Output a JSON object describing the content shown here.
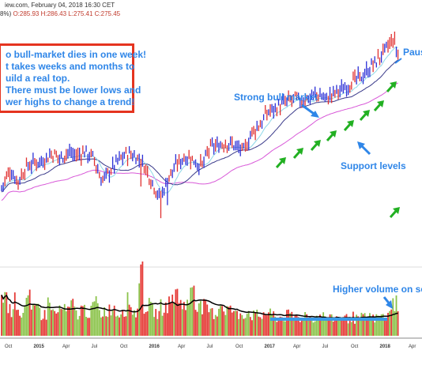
{
  "header": {
    "line1": "iew.com, February 04, 2018 16:30 CET",
    "line2_prefix": "8%) ",
    "ohlc": "O:285.93 H:286.43 L:275.41 C:275.45"
  },
  "callout": {
    "lines": [
      "o bull-market dies in one week!",
      "t takes weeks and months to",
      "uild a real top.",
      "There must be lower lows and",
      "wer highs to change a trend!"
    ]
  },
  "annotations": {
    "strong_bull": "Strong bull market",
    "support": "Support levels",
    "pause": "Paus",
    "volume": "Higher volume on sell"
  },
  "colors": {
    "up_bar": "#2b2fd6",
    "down_bar": "#e03030",
    "ma_fast": "#8ed8e8",
    "ma_mid": "#3a3a8a",
    "ma_slow": "#d858d8",
    "vol_up": "#8bc34a",
    "vol_down": "#e53935",
    "vol_ma": "#000000",
    "arrow_green": "#22b022",
    "arrow_blue": "#2f86e8",
    "highlight": "#3a9ae8"
  },
  "chart_data": {
    "type": "candlestick",
    "x_ticks": [
      "Oct",
      "2015",
      "Apr",
      "Jul",
      "Oct",
      "2016",
      "Apr",
      "Jul",
      "Oct",
      "2017",
      "Apr",
      "Jul",
      "Oct",
      "2018",
      "Apr"
    ],
    "price_series": [
      {
        "x": 0.0,
        "y": 0.3
      },
      {
        "x": 0.02,
        "y": 0.38
      },
      {
        "x": 0.04,
        "y": 0.33
      },
      {
        "x": 0.06,
        "y": 0.4
      },
      {
        "x": 0.08,
        "y": 0.42
      },
      {
        "x": 0.1,
        "y": 0.43
      },
      {
        "x": 0.12,
        "y": 0.46
      },
      {
        "x": 0.14,
        "y": 0.44
      },
      {
        "x": 0.16,
        "y": 0.47
      },
      {
        "x": 0.18,
        "y": 0.45
      },
      {
        "x": 0.2,
        "y": 0.47
      },
      {
        "x": 0.22,
        "y": 0.44
      },
      {
        "x": 0.24,
        "y": 0.33
      },
      {
        "x": 0.26,
        "y": 0.38
      },
      {
        "x": 0.28,
        "y": 0.43
      },
      {
        "x": 0.3,
        "y": 0.46
      },
      {
        "x": 0.32,
        "y": 0.45
      },
      {
        "x": 0.34,
        "y": 0.41
      },
      {
        "x": 0.36,
        "y": 0.33
      },
      {
        "x": 0.38,
        "y": 0.25
      },
      {
        "x": 0.4,
        "y": 0.35
      },
      {
        "x": 0.42,
        "y": 0.41
      },
      {
        "x": 0.44,
        "y": 0.45
      },
      {
        "x": 0.46,
        "y": 0.43
      },
      {
        "x": 0.48,
        "y": 0.4
      },
      {
        "x": 0.5,
        "y": 0.49
      },
      {
        "x": 0.52,
        "y": 0.5
      },
      {
        "x": 0.54,
        "y": 0.51
      },
      {
        "x": 0.56,
        "y": 0.5
      },
      {
        "x": 0.58,
        "y": 0.47
      },
      {
        "x": 0.6,
        "y": 0.56
      },
      {
        "x": 0.62,
        "y": 0.6
      },
      {
        "x": 0.64,
        "y": 0.66
      },
      {
        "x": 0.66,
        "y": 0.68
      },
      {
        "x": 0.68,
        "y": 0.7
      },
      {
        "x": 0.7,
        "y": 0.72
      },
      {
        "x": 0.72,
        "y": 0.71
      },
      {
        "x": 0.74,
        "y": 0.73
      },
      {
        "x": 0.76,
        "y": 0.74
      },
      {
        "x": 0.78,
        "y": 0.72
      },
      {
        "x": 0.8,
        "y": 0.75
      },
      {
        "x": 0.82,
        "y": 0.77
      },
      {
        "x": 0.84,
        "y": 0.8
      },
      {
        "x": 0.86,
        "y": 0.82
      },
      {
        "x": 0.88,
        "y": 0.86
      },
      {
        "x": 0.9,
        "y": 0.9
      },
      {
        "x": 0.92,
        "y": 0.95
      },
      {
        "x": 0.94,
        "y": 1.0
      },
      {
        "x": 0.95,
        "y": 0.92
      }
    ],
    "volume_series": [
      0.55,
      0.35,
      0.45,
      0.3,
      0.48,
      0.32,
      0.38,
      0.28,
      0.44,
      0.3,
      0.36,
      0.33,
      0.4,
      0.29,
      0.35,
      0.31,
      0.42,
      0.3,
      0.34,
      0.38,
      0.3,
      0.36,
      0.45,
      0.32,
      0.95,
      0.4,
      0.35,
      0.3,
      0.38,
      0.42,
      0.55,
      0.48,
      0.4,
      0.7,
      0.45,
      0.38,
      0.33,
      0.3,
      0.42,
      0.36,
      0.34,
      0.28,
      0.3,
      0.32,
      0.27,
      0.26,
      0.3,
      0.28,
      0.24,
      0.25,
      0.27,
      0.26,
      0.23,
      0.28,
      0.24,
      0.25,
      0.26,
      0.22,
      0.24,
      0.26,
      0.23,
      0.25,
      0.22,
      0.24,
      0.27,
      0.23,
      0.26,
      0.25,
      0.3,
      0.45
    ]
  }
}
